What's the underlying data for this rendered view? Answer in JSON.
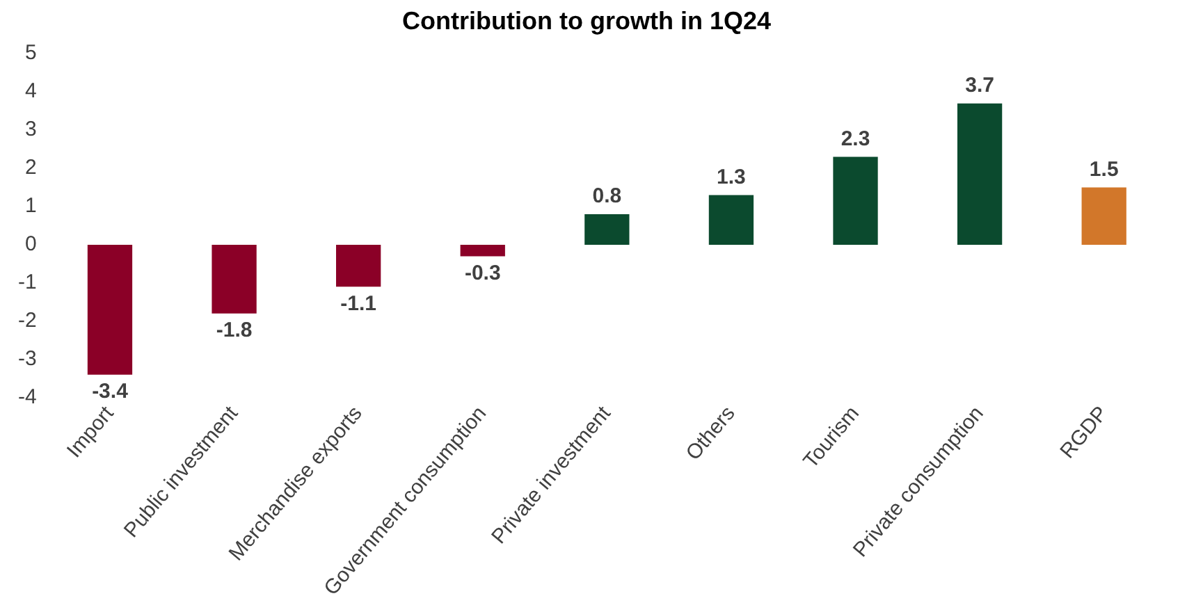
{
  "chart_data": {
    "type": "bar",
    "title": "Contribution to growth in 1Q24",
    "categories": [
      "Import",
      "Public investment",
      "Merchandise exports",
      "Government consumption",
      "Private investment",
      "Others",
      "Tourism",
      "Private consumption",
      "RGDP"
    ],
    "values": [
      -3.4,
      -1.8,
      -1.1,
      -0.3,
      0.8,
      1.3,
      2.3,
      3.7,
      1.5
    ],
    "colors": [
      "#8b0027",
      "#8b0027",
      "#8b0027",
      "#8b0027",
      "#0b4a2e",
      "#0b4a2e",
      "#0b4a2e",
      "#0b4a2e",
      "#d2772a"
    ],
    "ylim": [
      -4,
      5
    ],
    "yticks": [
      -4,
      -3,
      -2,
      -1,
      0,
      1,
      2,
      3,
      4,
      5
    ],
    "grid": false,
    "legend": false,
    "data_labels": true
  }
}
